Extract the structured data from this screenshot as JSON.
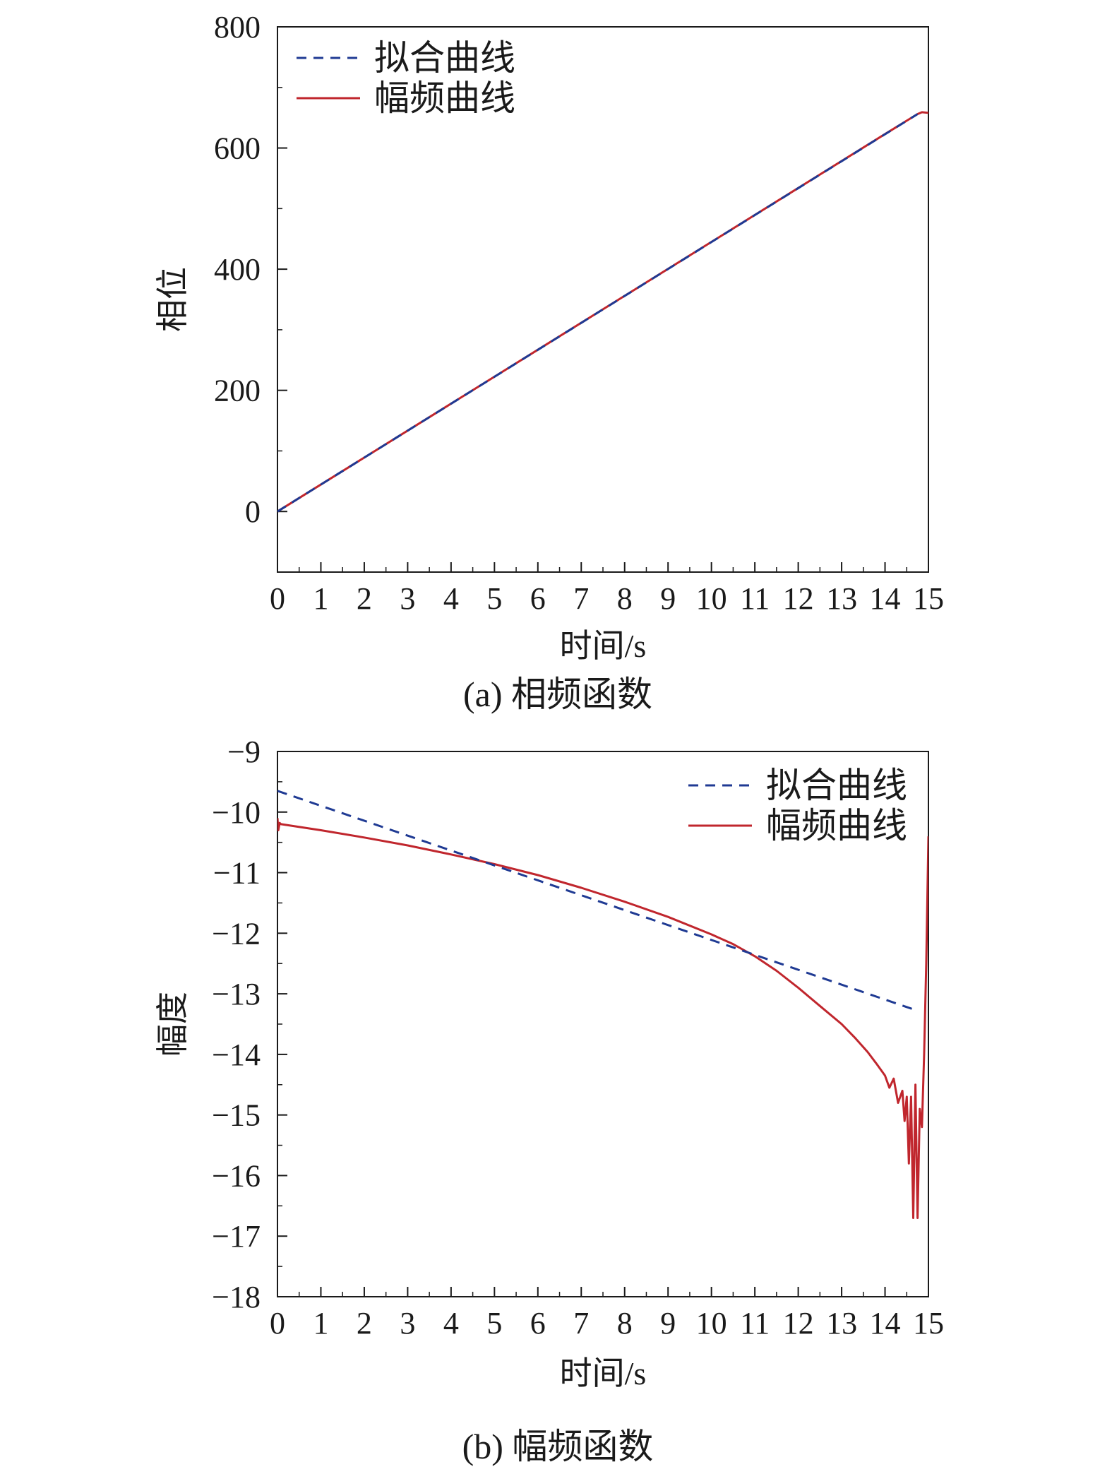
{
  "chart_data": [
    {
      "type": "line",
      "caption": "(a) 相频函数",
      "xlabel": "时间/s",
      "ylabel": "相位",
      "xlim": [
        0,
        15
      ],
      "ylim": [
        -100,
        800
      ],
      "xticks": [
        0,
        1,
        2,
        3,
        4,
        5,
        6,
        7,
        8,
        9,
        10,
        11,
        12,
        13,
        14,
        15
      ],
      "yticks": [
        0,
        200,
        400,
        600,
        800
      ],
      "grid": false,
      "legend_position": "top-left",
      "series": [
        {
          "name": "拟合曲线",
          "color": "#1f3a93",
          "style": "dashed",
          "x": [
            0,
            14.75
          ],
          "y": [
            0,
            656
          ]
        },
        {
          "name": "幅频曲线",
          "color": "#c0262d",
          "style": "solid",
          "x": [
            0,
            2,
            4,
            6,
            8,
            10,
            12,
            14,
            14.75,
            14.85,
            15
          ],
          "y": [
            0,
            89,
            178,
            267,
            356,
            445,
            534,
            623,
            656,
            659,
            658
          ]
        }
      ]
    },
    {
      "type": "line",
      "caption": "(b) 幅频函数",
      "xlabel": "时间/s",
      "ylabel": "幅度",
      "xlim": [
        0,
        15
      ],
      "ylim": [
        -18,
        -9
      ],
      "xticks": [
        0,
        1,
        2,
        3,
        4,
        5,
        6,
        7,
        8,
        9,
        10,
        11,
        12,
        13,
        14,
        15
      ],
      "yticks": [
        -9,
        -10,
        -11,
        -12,
        -13,
        -14,
        -15,
        -16,
        -17,
        -18
      ],
      "yticklabels": [
        "−9",
        "−10",
        "−11",
        "−12",
        "−13",
        "−14",
        "−15",
        "−16",
        "−17",
        "−18"
      ],
      "grid": false,
      "legend_position": "top-right",
      "series": [
        {
          "name": "拟合曲线",
          "color": "#1f3a93",
          "style": "dashed",
          "x": [
            0,
            14.75
          ],
          "y": [
            -9.65,
            -13.28
          ]
        },
        {
          "name": "幅频曲线",
          "color": "#c0262d",
          "style": "solid",
          "x": [
            0,
            0.02,
            0.05,
            0.08,
            1,
            2,
            3,
            4,
            5,
            6,
            7,
            8,
            9,
            10,
            10.5,
            11,
            11.5,
            12,
            12.5,
            13,
            13.3,
            13.6,
            13.8,
            14.0,
            14.1,
            14.2,
            14.3,
            14.4,
            14.45,
            14.5,
            14.55,
            14.6,
            14.65,
            14.7,
            14.75,
            14.8,
            14.85,
            14.9,
            14.95,
            15.0
          ],
          "y": [
            -10.1,
            -10.3,
            -10.18,
            -10.2,
            -10.3,
            -10.42,
            -10.55,
            -10.7,
            -10.86,
            -11.04,
            -11.25,
            -11.48,
            -11.73,
            -12.02,
            -12.18,
            -12.38,
            -12.62,
            -12.9,
            -13.2,
            -13.5,
            -13.72,
            -13.96,
            -14.15,
            -14.35,
            -14.55,
            -14.4,
            -14.8,
            -14.6,
            -15.1,
            -14.7,
            -15.8,
            -14.7,
            -16.7,
            -14.5,
            -16.7,
            -14.9,
            -15.2,
            -14.0,
            -12.5,
            -10.4
          ]
        }
      ]
    }
  ]
}
